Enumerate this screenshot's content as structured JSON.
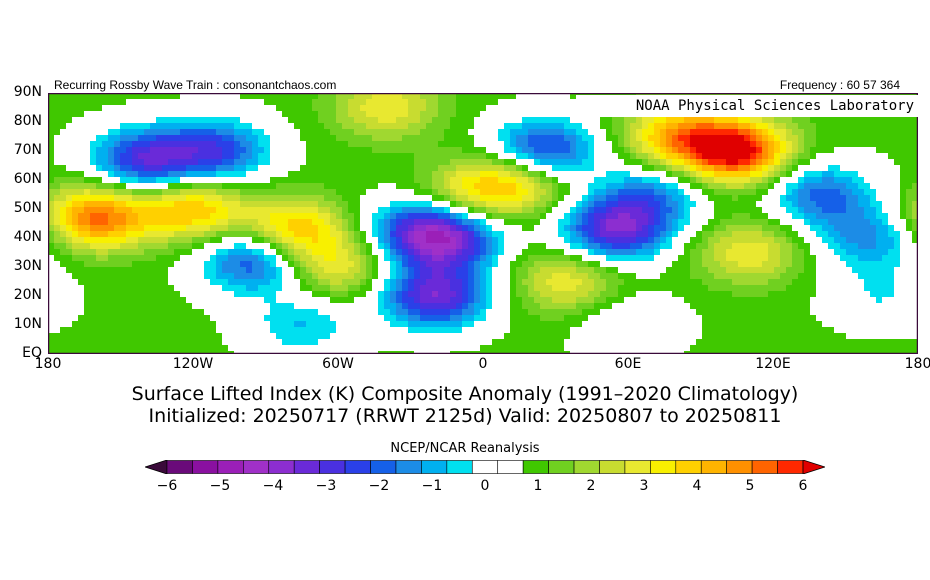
{
  "header": {
    "left": "Recurring Rossby Wave Train : consonantchaos.com",
    "right": "Frequency : 60 57 364",
    "lab": "NOAA Physical Sciences Laboratory"
  },
  "map": {
    "lat_labels": [
      "90N",
      "80N",
      "70N",
      "60N",
      "50N",
      "40N",
      "30N",
      "20N",
      "10N",
      "EQ"
    ],
    "lon_labels": [
      "180",
      "120W",
      "60W",
      "0",
      "60E",
      "120E",
      "180"
    ],
    "extent": {
      "lon_min": -180,
      "lon_max": 180,
      "lat_min": 0,
      "lat_max": 90
    },
    "anomaly_centers": [
      {
        "lon": -140,
        "lat": 67,
        "value": -3.5
      },
      {
        "lon": -110,
        "lat": 70,
        "value": -3
      },
      {
        "lon": -160,
        "lat": 47,
        "value": 4
      },
      {
        "lon": -120,
        "lat": 50,
        "value": 3
      },
      {
        "lon": -78,
        "lat": 43,
        "value": 3
      },
      {
        "lon": -95,
        "lat": 32,
        "value": -3
      },
      {
        "lon": -60,
        "lat": 30,
        "value": 2
      },
      {
        "lon": -75,
        "lat": 10,
        "value": -1.5
      },
      {
        "lon": -30,
        "lat": 43,
        "value": -2
      },
      {
        "lon": -15,
        "lat": 40,
        "value": -4
      },
      {
        "lon": -5,
        "lat": 55,
        "value": 2
      },
      {
        "lon": 15,
        "lat": 60,
        "value": 2.5
      },
      {
        "lon": -20,
        "lat": 20,
        "value": -4
      },
      {
        "lon": 25,
        "lat": 70,
        "value": -3.5
      },
      {
        "lon": 55,
        "lat": 43,
        "value": -4
      },
      {
        "lon": 35,
        "lat": 25,
        "value": 2
      },
      {
        "lon": 70,
        "lat": 55,
        "value": -2
      },
      {
        "lon": 105,
        "lat": 70,
        "value": 5
      },
      {
        "lon": 80,
        "lat": 75,
        "value": 3
      },
      {
        "lon": 110,
        "lat": 35,
        "value": 2
      },
      {
        "lon": 140,
        "lat": 55,
        "value": -2.5
      },
      {
        "lon": 160,
        "lat": 40,
        "value": -2
      },
      {
        "lon": 165,
        "lat": 20,
        "value": -1
      },
      {
        "lon": -40,
        "lat": 85,
        "value": 2
      },
      {
        "lon": 60,
        "lat": 10,
        "value": -1
      }
    ]
  },
  "title": {
    "line1": "Surface Lifted Index (K) Composite Anomaly (1991–2020 Climatology)",
    "line2": "Initialized: 20250717 (RRWT 2125d) Valid: 20250807 to 20250811"
  },
  "colorbar": {
    "title": "NCEP/NCAR Reanalysis",
    "tick_labels": [
      "−6",
      "−5",
      "−4",
      "−3",
      "−2",
      "−1",
      "0",
      "1",
      "2",
      "3",
      "4",
      "5",
      "6"
    ],
    "min": -6,
    "max": 6,
    "colors": [
      "#3a0a3a",
      "#6a0a7a",
      "#8a10a0",
      "#9b1fb8",
      "#a030c8",
      "#8c2ed0",
      "#6a2ad8",
      "#4a30e0",
      "#2a40e8",
      "#1560e8",
      "#1c8ce6",
      "#00b0f0",
      "#00e0f0",
      "#ffffff",
      "#ffffff",
      "#40c800",
      "#70d020",
      "#a0d830",
      "#c8dc30",
      "#e8e830",
      "#f8f000",
      "#ffd000",
      "#ffb400",
      "#ff9000",
      "#ff6400",
      "#ff2800",
      "#e00000"
    ]
  }
}
